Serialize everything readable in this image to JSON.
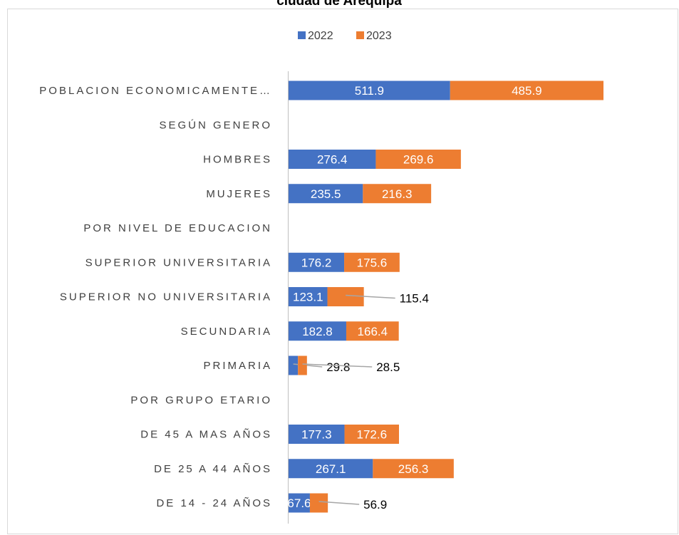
{
  "chart_data": {
    "type": "stacked-bar-horizontal",
    "title": "ciudad de Arequipa",
    "categories": [
      "POBLACION ECONOMICAMENTE…",
      "SEGÚN GENERO",
      "HOMBRES",
      "MUJERES",
      "POR NIVEL DE EDUCACION",
      "SUPERIOR UNIVERSITARIA",
      "SUPERIOR NO UNIVERSITARIA",
      "SECUNDARIA",
      "PRIMARIA",
      "POR GRUPO ETARIO",
      "DE 45 A MAS AÑOS",
      "DE 25 A 44 AÑOS",
      "DE 14 - 24 AÑOS"
    ],
    "series": [
      {
        "name": "2022",
        "color": "#4472c4",
        "values": [
          511.9,
          null,
          276.4,
          235.5,
          null,
          176.2,
          123.1,
          182.8,
          29.8,
          null,
          177.3,
          267.1,
          67.6
        ]
      },
      {
        "name": "2023",
        "color": "#ed7d31",
        "values": [
          485.9,
          null,
          269.6,
          216.3,
          null,
          175.6,
          115.4,
          166.4,
          28.5,
          null,
          172.6,
          256.3,
          56.9
        ]
      }
    ],
    "legend": "top"
  }
}
